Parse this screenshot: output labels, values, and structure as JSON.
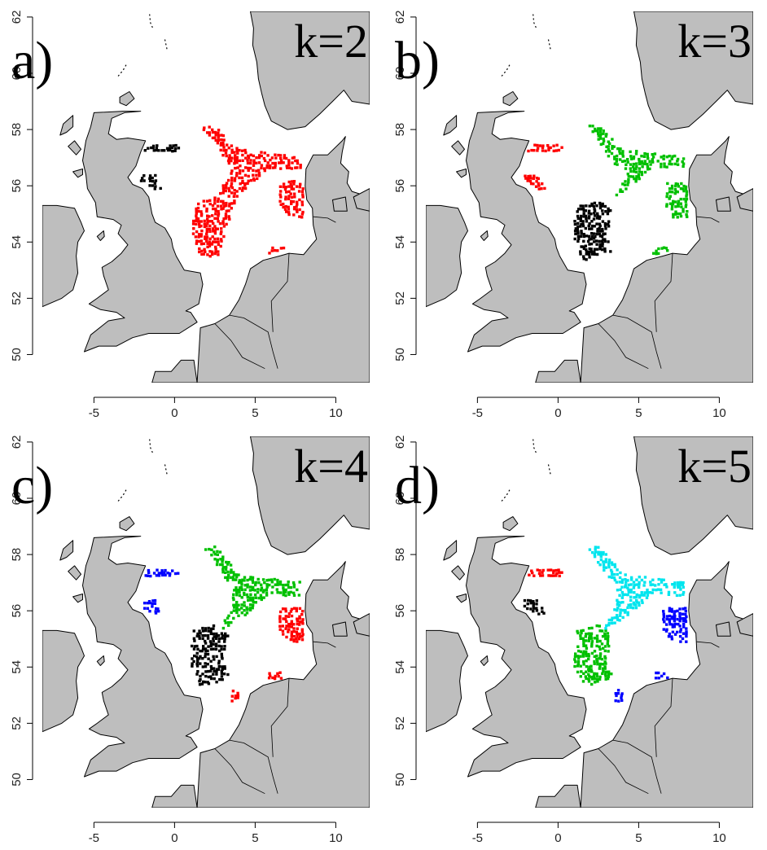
{
  "figure": {
    "panels": [
      {
        "id": "a",
        "letter": "a)",
        "k_label": "k=2",
        "x_ticks": [
          "-5",
          "0",
          "5",
          "10"
        ],
        "y_ticks": [
          "50",
          "52",
          "54",
          "56",
          "58",
          "60",
          "62"
        ],
        "clusters": [
          {
            "color": "#000000",
            "region": "scotland-coast"
          },
          {
            "color": "#ff0000",
            "region": "central-north-sea"
          }
        ]
      },
      {
        "id": "b",
        "letter": "b)",
        "k_label": "k=3",
        "x_ticks": [
          "-5",
          "0",
          "5",
          "10"
        ],
        "y_ticks": [
          "50",
          "52",
          "54",
          "56",
          "58",
          "60",
          "62"
        ],
        "clusters": [
          {
            "color": "#ff0000",
            "region": "scotland-coast"
          },
          {
            "color": "#000000",
            "region": "dogger-bank"
          },
          {
            "color": "#00c000",
            "region": "northeast-and-danish"
          }
        ]
      },
      {
        "id": "c",
        "letter": "c)",
        "k_label": "k=4",
        "x_ticks": [
          "-5",
          "0",
          "5",
          "10"
        ],
        "y_ticks": [
          "50",
          "52",
          "54",
          "56",
          "58",
          "60",
          "62"
        ],
        "clusters": [
          {
            "color": "#0000ff",
            "region": "scotland-coast"
          },
          {
            "color": "#000000",
            "region": "dogger-bank"
          },
          {
            "color": "#00c000",
            "region": "northeast"
          },
          {
            "color": "#ff0000",
            "region": "danish-coast"
          }
        ]
      },
      {
        "id": "d",
        "letter": "d)",
        "k_label": "k=5",
        "x_ticks": [
          "-5",
          "0",
          "5",
          "10"
        ],
        "y_ticks": [
          "50",
          "52",
          "54",
          "56",
          "58",
          "60",
          "62"
        ],
        "clusters": [
          {
            "color": "#ff0000",
            "region": "scotland-north"
          },
          {
            "color": "#000000",
            "region": "scotland-south"
          },
          {
            "color": "#00c000",
            "region": "dogger-bank"
          },
          {
            "color": "#00e5ee",
            "region": "northeast"
          },
          {
            "color": "#0000ff",
            "region": "danish-coast"
          }
        ]
      }
    ],
    "colors": {
      "land": "#bebebe",
      "sea": "#ffffff",
      "coastline": "#000000",
      "black": "#000000",
      "red": "#ff0000",
      "green": "#00c000",
      "blue": "#0000ff",
      "cyan": "#00e5ee"
    }
  }
}
